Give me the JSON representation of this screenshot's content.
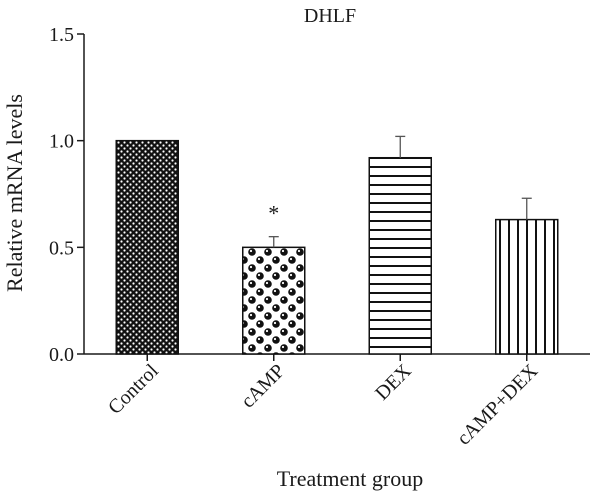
{
  "chart_data": {
    "type": "bar",
    "title": "DHLF",
    "xlabel": "Treatment group",
    "ylabel": "Relative mRNA levels",
    "ylim": [
      0,
      1.5
    ],
    "yticks": [
      "0.0",
      "0.5",
      "1.0",
      "1.5"
    ],
    "ytick_values": [
      0,
      0.5,
      1.0,
      1.5
    ],
    "grid": false,
    "categories": [
      "Control",
      "cAMP",
      "DEX",
      "cAMP+DEX"
    ],
    "values": [
      1.0,
      0.5,
      0.92,
      0.63
    ],
    "error": [
      0,
      0.05,
      0.1,
      0.1
    ],
    "patterns": [
      "dense-dots",
      "checker-circles",
      "horizontal-lines",
      "vertical-lines"
    ],
    "annotations": [
      {
        "category": "cAMP",
        "text": "*"
      }
    ]
  }
}
